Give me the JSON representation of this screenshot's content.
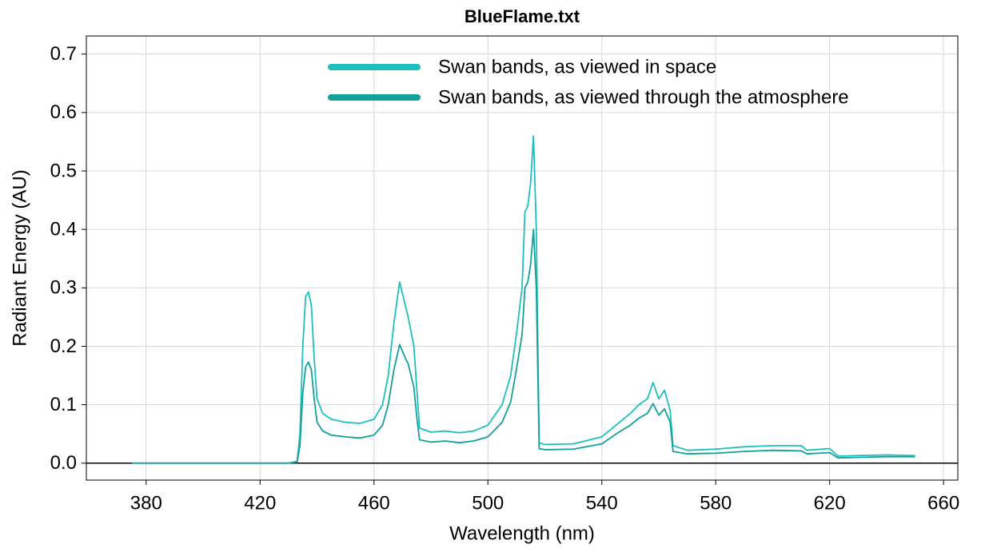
{
  "chart_data": {
    "type": "line",
    "title": "BlueFlame.txt",
    "x_label": "Wavelength (nm)",
    "y_label": "Radiant Energy (AU)",
    "x": [
      375,
      430,
      433,
      434,
      435,
      436,
      437,
      438,
      439,
      440,
      442,
      445,
      450,
      455,
      460,
      463,
      465,
      467,
      469,
      471,
      472,
      474,
      475,
      476,
      480,
      485,
      490,
      495,
      500,
      505,
      508,
      510,
      512,
      513,
      514,
      515,
      516,
      517,
      518,
      520,
      530,
      540,
      545,
      550,
      553,
      556,
      558,
      560,
      562,
      564,
      565,
      570,
      580,
      590,
      600,
      610,
      612,
      620,
      623,
      630,
      640,
      650
    ],
    "series": [
      {
        "name": "Swan bands, as viewed in space",
        "color": "#1dbfbf",
        "values": [
          0,
          0,
          0.003,
          0.05,
          0.2,
          0.285,
          0.293,
          0.27,
          0.18,
          0.11,
          0.085,
          0.075,
          0.07,
          0.068,
          0.075,
          0.1,
          0.15,
          0.24,
          0.31,
          0.27,
          0.25,
          0.2,
          0.13,
          0.06,
          0.053,
          0.055,
          0.052,
          0.055,
          0.065,
          0.1,
          0.15,
          0.22,
          0.3,
          0.43,
          0.44,
          0.48,
          0.56,
          0.4,
          0.035,
          0.032,
          0.033,
          0.045,
          0.065,
          0.085,
          0.1,
          0.11,
          0.138,
          0.11,
          0.125,
          0.09,
          0.03,
          0.022,
          0.024,
          0.028,
          0.03,
          0.03,
          0.022,
          0.025,
          0.012,
          0.013,
          0.014,
          0.013
        ]
      },
      {
        "name": "Swan bands, as viewed through the atmosphere",
        "color": "#14a09a",
        "values": [
          0,
          0,
          0.002,
          0.03,
          0.12,
          0.165,
          0.173,
          0.16,
          0.11,
          0.07,
          0.055,
          0.048,
          0.045,
          0.043,
          0.048,
          0.065,
          0.1,
          0.16,
          0.203,
          0.18,
          0.17,
          0.13,
          0.08,
          0.04,
          0.036,
          0.038,
          0.035,
          0.038,
          0.045,
          0.07,
          0.105,
          0.16,
          0.22,
          0.3,
          0.31,
          0.34,
          0.4,
          0.3,
          0.025,
          0.023,
          0.024,
          0.033,
          0.05,
          0.065,
          0.077,
          0.085,
          0.102,
          0.082,
          0.093,
          0.07,
          0.02,
          0.016,
          0.017,
          0.02,
          0.022,
          0.021,
          0.016,
          0.018,
          0.009,
          0.01,
          0.011,
          0.011
        ]
      }
    ],
    "xlim": [
      359,
      665
    ],
    "xticks": [
      380,
      420,
      460,
      500,
      540,
      580,
      620,
      660
    ],
    "ylim": [
      -0.029,
      0.731
    ],
    "yticks": [
      {
        "value": 0,
        "label": "0.0"
      },
      0.1,
      0.2,
      0.3,
      0.4,
      0.5,
      0.6,
      0.7
    ],
    "grid": true,
    "zero_line": true,
    "legend": "top"
  }
}
